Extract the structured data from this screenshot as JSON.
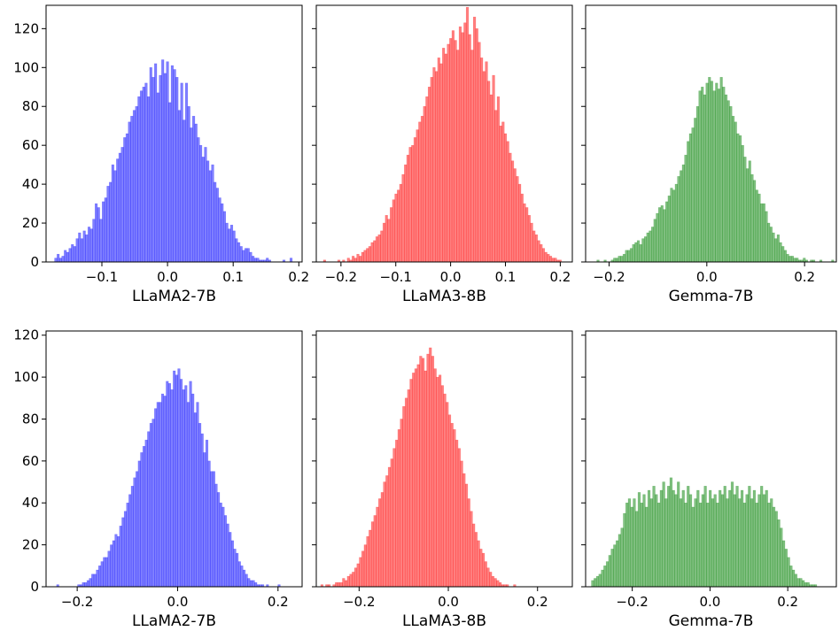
{
  "figure": {
    "background": "#ffffff"
  },
  "chart_data": [
    {
      "type": "bar",
      "name": "LLaMA2-7B",
      "row": 1,
      "color": "#0000ff",
      "xlabel": "LLaMA2-7B",
      "xlim": [
        -0.185,
        0.205
      ],
      "ylim": [
        0,
        132
      ],
      "xticks": [
        -0.1,
        0.0,
        0.1,
        0.2
      ],
      "xtick_labels": [
        "−0.1",
        "0.0",
        "0.1",
        "0.2"
      ],
      "yticks": [
        0,
        20,
        40,
        60,
        80,
        100,
        120
      ],
      "ytick_labels": [
        "0",
        "20",
        "40",
        "60",
        "80",
        "100",
        "120"
      ],
      "show_yticklabels": true,
      "bins": {
        "start": -0.172,
        "width": 0.00362,
        "values": [
          2,
          4,
          2,
          3,
          6,
          5,
          7,
          9,
          8,
          12,
          15,
          12,
          16,
          14,
          18,
          17,
          22,
          30,
          28,
          22,
          31,
          33,
          39,
          41,
          50,
          47,
          53,
          56,
          59,
          64,
          66,
          72,
          75,
          78,
          80,
          85,
          88,
          90,
          92,
          85,
          100,
          95,
          102,
          87,
          96,
          104,
          97,
          103,
          82,
          101,
          99,
          95,
          78,
          92,
          73,
          92,
          80,
          69,
          75,
          71,
          64,
          60,
          54,
          59,
          52,
          47,
          50,
          41,
          38,
          33,
          30,
          26,
          20,
          17,
          19,
          16,
          12,
          10,
          8,
          6,
          7,
          7,
          5,
          3,
          2,
          2,
          1,
          1,
          1,
          2,
          1,
          0,
          0,
          0,
          0,
          0,
          1,
          0,
          0,
          2
        ]
      }
    },
    {
      "type": "bar",
      "name": "LLaMA3-8B",
      "row": 1,
      "color": "#ff0000",
      "xlabel": "LLaMA3-8B",
      "xlim": [
        -0.245,
        0.222
      ],
      "ylim": [
        0,
        132
      ],
      "xticks": [
        -0.2,
        -0.1,
        0.0,
        0.1,
        0.2
      ],
      "xtick_labels": [
        "−0.2",
        "−0.1",
        "0.0",
        "0.1",
        "0.2"
      ],
      "yticks": [
        0,
        20,
        40,
        60,
        80,
        100,
        120
      ],
      "ytick_labels": [
        "0",
        "20",
        "40",
        "60",
        "80",
        "100",
        "120"
      ],
      "show_yticklabels": false,
      "bins": {
        "start": -0.232,
        "width": 0.00434,
        "values": [
          1,
          0,
          0,
          0,
          0,
          0,
          1,
          0,
          1,
          0,
          2,
          1,
          3,
          2,
          4,
          3,
          5,
          6,
          7,
          8,
          10,
          11,
          13,
          14,
          16,
          20,
          24,
          22,
          28,
          32,
          35,
          37,
          40,
          45,
          50,
          55,
          59,
          60,
          64,
          68,
          72,
          75,
          80,
          85,
          90,
          95,
          100,
          98,
          105,
          102,
          110,
          107,
          112,
          115,
          119,
          114,
          109,
          121,
          118,
          123,
          131,
          117,
          109,
          126,
          120,
          113,
          105,
          98,
          103,
          93,
          86,
          96,
          78,
          85,
          70,
          72,
          66,
          62,
          56,
          52,
          48,
          44,
          40,
          35,
          30,
          28,
          24,
          20,
          16,
          14,
          11,
          9,
          7,
          5,
          4,
          3,
          2,
          2,
          1,
          1
        ]
      }
    },
    {
      "type": "bar",
      "name": "Gemma-7B",
      "row": 1,
      "color": "#008000",
      "xlabel": "Gemma-7B",
      "xlim": [
        -0.248,
        0.265
      ],
      "ylim": [
        0,
        132
      ],
      "xticks": [
        -0.2,
        0.0,
        0.2
      ],
      "xtick_labels": [
        "−0.2",
        "0.0",
        "0.2"
      ],
      "yticks": [
        0,
        20,
        40,
        60,
        80,
        100,
        120
      ],
      "ytick_labels": [
        "0",
        "20",
        "40",
        "60",
        "80",
        "100",
        "120"
      ],
      "show_yticklabels": false,
      "bins": {
        "start": -0.225,
        "width": 0.00485,
        "values": [
          1,
          0,
          0,
          1,
          0,
          0,
          1,
          2,
          2,
          3,
          3,
          4,
          6,
          6,
          7,
          9,
          10,
          11,
          9,
          12,
          13,
          15,
          16,
          18,
          22,
          25,
          28,
          29,
          27,
          31,
          34,
          38,
          37,
          40,
          44,
          47,
          50,
          55,
          62,
          66,
          69,
          74,
          80,
          88,
          90,
          86,
          92,
          95,
          93,
          88,
          92,
          89,
          95,
          90,
          86,
          83,
          80,
          75,
          72,
          66,
          65,
          60,
          54,
          48,
          52,
          45,
          42,
          37,
          35,
          30,
          30,
          26,
          20,
          18,
          15,
          12,
          14,
          10,
          8,
          6,
          4,
          3,
          3,
          2,
          2,
          1,
          1,
          2,
          1,
          0,
          1,
          1,
          0,
          0,
          1,
          0,
          0,
          0,
          0,
          1
        ]
      }
    },
    {
      "type": "bar",
      "name": "LLaMA2-7B",
      "row": 2,
      "color": "#0000ff",
      "xlabel": "LLaMA2-7B",
      "xlim": [
        -0.262,
        0.248
      ],
      "ylim": [
        0,
        122
      ],
      "xticks": [
        -0.2,
        0.0,
        0.2
      ],
      "xtick_labels": [
        "−0.2",
        "0.0",
        "0.2"
      ],
      "yticks": [
        0,
        20,
        40,
        60,
        80,
        100,
        120
      ],
      "ytick_labels": [
        "0",
        "20",
        "40",
        "60",
        "80",
        "100",
        "120"
      ],
      "show_yticklabels": true,
      "bins": {
        "start": -0.241,
        "width": 0.00464,
        "values": [
          1,
          0,
          0,
          0,
          0,
          0,
          0,
          0,
          0,
          1,
          1,
          2,
          2,
          3,
          4,
          6,
          6,
          8,
          10,
          12,
          14,
          14,
          17,
          20,
          22,
          25,
          24,
          29,
          33,
          36,
          40,
          44,
          48,
          52,
          55,
          60,
          64,
          67,
          70,
          74,
          78,
          80,
          85,
          88,
          88,
          92,
          91,
          98,
          97,
          94,
          103,
          101,
          104,
          99,
          94,
          96,
          88,
          98,
          92,
          83,
          88,
          78,
          73,
          64,
          70,
          60,
          55,
          55,
          49,
          45,
          40,
          38,
          34,
          30,
          26,
          22,
          18,
          16,
          12,
          10,
          8,
          6,
          4,
          3,
          3,
          2,
          1,
          1,
          1,
          0,
          1,
          0,
          0,
          0,
          0,
          1,
          0,
          0,
          0,
          0
        ]
      }
    },
    {
      "type": "bar",
      "name": "LLaMA3-8B",
      "row": 2,
      "color": "#ff0000",
      "xlabel": "LLaMA3-8B",
      "xlim": [
        -0.296,
        0.278
      ],
      "ylim": [
        0,
        122
      ],
      "xticks": [
        -0.2,
        0.0,
        0.2
      ],
      "xtick_labels": [
        "−0.2",
        "0.0",
        "0.2"
      ],
      "yticks": [
        0,
        20,
        40,
        60,
        80,
        100,
        120
      ],
      "ytick_labels": [
        "0",
        "20",
        "40",
        "60",
        "80",
        "100",
        "120"
      ],
      "show_yticklabels": false,
      "bins": {
        "start": -0.286,
        "width": 0.0054,
        "values": [
          1,
          0,
          1,
          1,
          0,
          1,
          2,
          2,
          2,
          4,
          3,
          5,
          6,
          7,
          9,
          11,
          14,
          17,
          20,
          24,
          27,
          31,
          34,
          38,
          42,
          45,
          50,
          53,
          57,
          61,
          66,
          70,
          75,
          80,
          86,
          90,
          94,
          99,
          102,
          104,
          106,
          110,
          109,
          103,
          111,
          114,
          110,
          104,
          100,
          101,
          96,
          92,
          88,
          82,
          78,
          75,
          70,
          66,
          60,
          54,
          49,
          42,
          36,
          30,
          26,
          22,
          18,
          16,
          12,
          9,
          7,
          5,
          4,
          3,
          2,
          1,
          1,
          1,
          0,
          0,
          1,
          0,
          0,
          0,
          0,
          0,
          0,
          0,
          0,
          0,
          0,
          0,
          0,
          0,
          0,
          0,
          0,
          0,
          0,
          0
        ]
      }
    },
    {
      "type": "bar",
      "name": "Gemma-7B",
      "row": 2,
      "color": "#008000",
      "xlabel": "Gemma-7B",
      "xlim": [
        -0.32,
        0.325
      ],
      "ylim": [
        0,
        122
      ],
      "xticks": [
        -0.2,
        0.0,
        0.2
      ],
      "xtick_labels": [
        "−0.2",
        "0.0",
        "0.2"
      ],
      "yticks": [
        0,
        20,
        40,
        60,
        80,
        100,
        120
      ],
      "ytick_labels": [
        "0",
        "20",
        "40",
        "60",
        "80",
        "100",
        "120"
      ],
      "show_yticklabels": false,
      "bins": {
        "start": -0.305,
        "width": 0.0063,
        "values": [
          3,
          4,
          5,
          6,
          8,
          10,
          12,
          15,
          18,
          20,
          22,
          25,
          28,
          35,
          40,
          42,
          38,
          42,
          36,
          45,
          40,
          44,
          38,
          46,
          42,
          48,
          44,
          40,
          46,
          50,
          42,
          48,
          52,
          46,
          44,
          50,
          42,
          46,
          40,
          48,
          44,
          38,
          42,
          46,
          40,
          44,
          48,
          40,
          46,
          42,
          44,
          40,
          46,
          44,
          48,
          42,
          46,
          50,
          44,
          48,
          42,
          46,
          40,
          44,
          48,
          42,
          46,
          40,
          44,
          48,
          44,
          46,
          40,
          42,
          38,
          36,
          32,
          28,
          22,
          18,
          14,
          10,
          8,
          6,
          4,
          4,
          3,
          2,
          2,
          1,
          1,
          1,
          0,
          0,
          0,
          0,
          0,
          0,
          0,
          0
        ]
      }
    }
  ]
}
